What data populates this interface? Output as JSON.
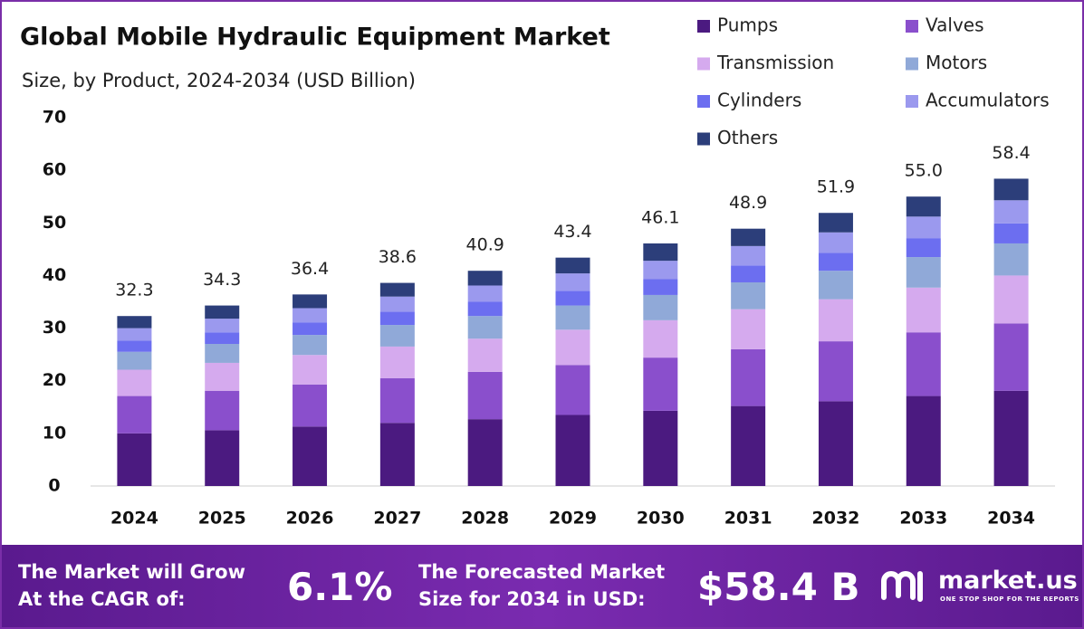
{
  "chart_data": {
    "type": "stacked_bar",
    "title": "Global Mobile Hydraulic Equipment Market",
    "subtitle": "Size, by Product, 2024-2034 (USD Billion)",
    "categories": [
      "2024",
      "2025",
      "2026",
      "2027",
      "2028",
      "2029",
      "2030",
      "2031",
      "2032",
      "2033",
      "2034"
    ],
    "series": [
      {
        "name": "Pumps",
        "color": "#4b1a80",
        "values": [
          10.0,
          10.6,
          11.3,
          12.0,
          12.7,
          13.5,
          14.3,
          15.2,
          16.1,
          17.1,
          18.1
        ]
      },
      {
        "name": "Valves",
        "color": "#8a4fcc",
        "values": [
          7.1,
          7.5,
          8.0,
          8.5,
          9.0,
          9.5,
          10.1,
          10.8,
          11.4,
          12.1,
          12.8
        ]
      },
      {
        "name": "Transmission",
        "color": "#d5aaee",
        "values": [
          5.0,
          5.3,
          5.6,
          6.0,
          6.3,
          6.7,
          7.1,
          7.6,
          8.0,
          8.5,
          9.1
        ]
      },
      {
        "name": "Motors",
        "color": "#90a9d8",
        "values": [
          3.4,
          3.6,
          3.8,
          4.1,
          4.3,
          4.6,
          4.8,
          5.1,
          5.4,
          5.8,
          6.1
        ]
      },
      {
        "name": "Cylinders",
        "color": "#6c6ef0",
        "values": [
          2.1,
          2.2,
          2.4,
          2.5,
          2.7,
          2.8,
          3.0,
          3.2,
          3.4,
          3.6,
          3.8
        ]
      },
      {
        "name": "Accumulators",
        "color": "#9b99ee",
        "values": [
          2.4,
          2.6,
          2.7,
          2.9,
          3.1,
          3.3,
          3.5,
          3.7,
          3.9,
          4.1,
          4.4
        ]
      },
      {
        "name": "Others",
        "color": "#2c3e7a",
        "values": [
          2.3,
          2.5,
          2.6,
          2.6,
          2.8,
          3.0,
          3.3,
          3.3,
          3.7,
          3.8,
          4.1
        ]
      }
    ],
    "totals": {
      "values": [
        32.3,
        34.3,
        36.4,
        38.6,
        40.9,
        43.4,
        46.1,
        48.9,
        51.9,
        55,
        58.4
      ],
      "value_labels": [
        "32.3",
        "34.3",
        "36.4",
        "38.6",
        "40.9",
        "43.4",
        "46.1",
        "48.9",
        "51.9",
        "55.0",
        "58.4"
      ]
    },
    "ylim": [
      0,
      70
    ],
    "yticks": [
      0,
      10,
      20,
      30,
      40,
      50,
      60,
      70
    ],
    "grid": false
  },
  "footer": {
    "cagr_text_1": "The Market will Grow",
    "cagr_text_2": "At the CAGR of:",
    "cagr_value": "6.1%",
    "forecast_text_1": "The Forecasted Market",
    "forecast_text_2": "Size for 2034 in USD:",
    "forecast_value": "$58.4 B",
    "brand": "market.us",
    "tagline": "ONE STOP SHOP FOR THE REPORTS"
  }
}
